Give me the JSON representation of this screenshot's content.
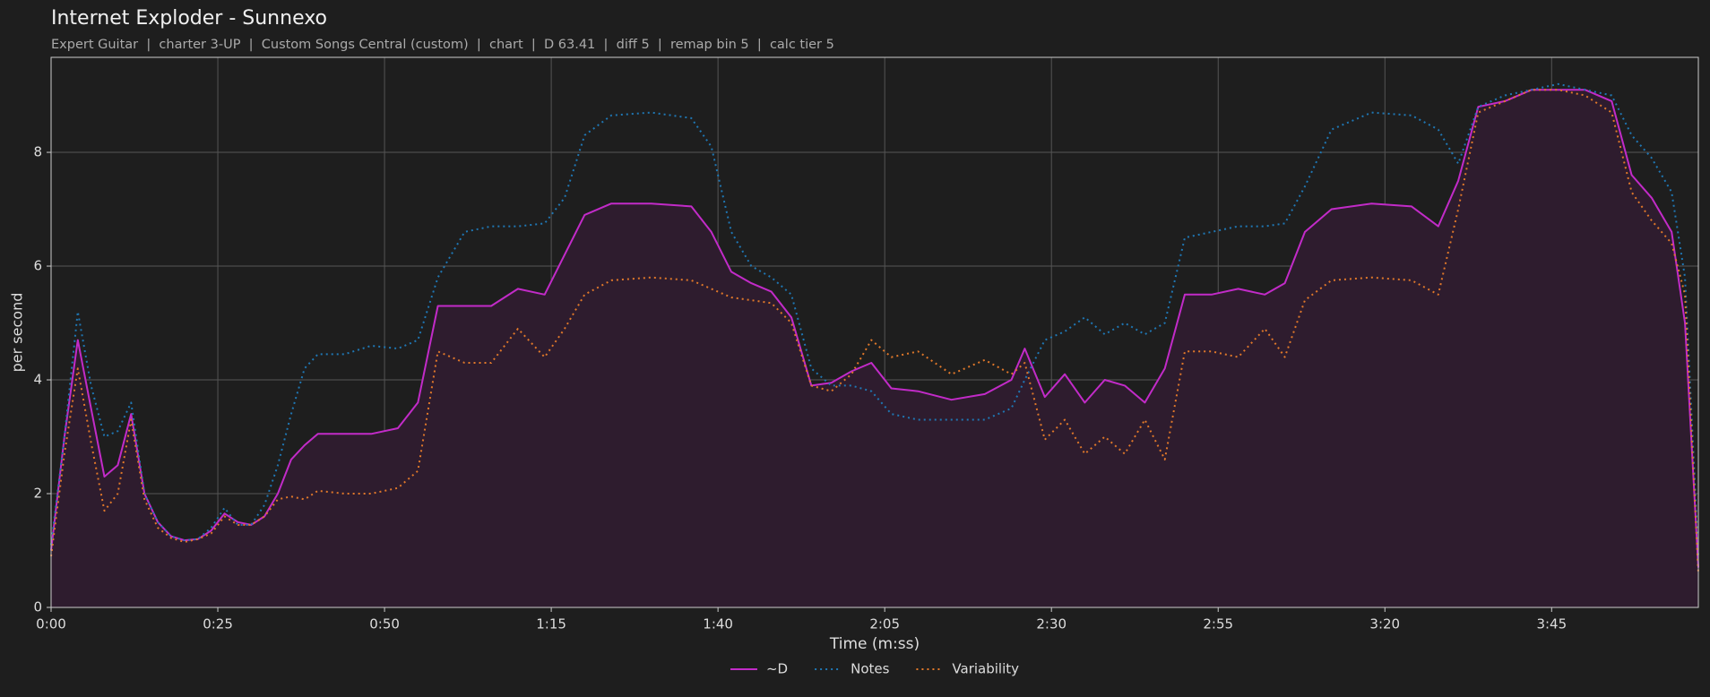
{
  "chart_data": {
    "type": "line",
    "title": "Internet Exploder - Sunnexo",
    "subtitle": "Expert Guitar  |  charter 3-UP  |  Custom Songs Central (custom)  |  chart  |  D 63.41  |  diff 5  |  remap bin 5  |  calc tier 5",
    "xlabel": "Time (m:ss)",
    "ylabel": "per second",
    "x": [
      0,
      2,
      4,
      6,
      8,
      10,
      12,
      14,
      16,
      18,
      20,
      22,
      24,
      26,
      28,
      30,
      32,
      34,
      36,
      38,
      40,
      44,
      48,
      52,
      55,
      58,
      62,
      66,
      70,
      74,
      77,
      80,
      84,
      90,
      96,
      99,
      102,
      105,
      108,
      111,
      114,
      117,
      120,
      123,
      126,
      130,
      135,
      140,
      144,
      146,
      149,
      152,
      155,
      158,
      161,
      164,
      167,
      170,
      174,
      178,
      182,
      185,
      188,
      192,
      198,
      204,
      208,
      211,
      214,
      218,
      222,
      226,
      230,
      234,
      237,
      240,
      243,
      245,
      247
    ],
    "series": [
      {
        "name": "~D",
        "color": "#c22bc8",
        "linestyle": "solid",
        "fill": "#2e1c2e",
        "values": [
          1.0,
          3.0,
          4.7,
          3.5,
          2.3,
          2.5,
          3.4,
          2.0,
          1.5,
          1.25,
          1.18,
          1.2,
          1.35,
          1.65,
          1.5,
          1.45,
          1.6,
          2.0,
          2.6,
          2.85,
          3.05,
          3.05,
          3.05,
          3.15,
          3.6,
          5.3,
          5.3,
          5.3,
          5.6,
          5.5,
          6.2,
          6.9,
          7.1,
          7.1,
          7.05,
          6.6,
          5.9,
          5.7,
          5.55,
          5.1,
          3.9,
          3.95,
          4.15,
          4.3,
          3.85,
          3.8,
          3.65,
          3.75,
          4.0,
          4.55,
          3.7,
          4.1,
          3.6,
          4.0,
          3.9,
          3.6,
          4.2,
          5.5,
          5.5,
          5.6,
          5.5,
          5.7,
          6.6,
          7.0,
          7.1,
          7.05,
          6.7,
          7.5,
          8.8,
          8.9,
          9.1,
          9.1,
          9.1,
          8.9,
          7.6,
          7.2,
          6.6,
          5.0,
          0.7
        ]
      },
      {
        "name": "Notes",
        "color": "#1f77b4",
        "linestyle": "dotted",
        "values": [
          1.1,
          3.0,
          5.2,
          3.9,
          3.0,
          3.1,
          3.6,
          2.0,
          1.5,
          1.25,
          1.18,
          1.2,
          1.4,
          1.75,
          1.45,
          1.45,
          1.8,
          2.5,
          3.4,
          4.2,
          4.45,
          4.45,
          4.6,
          4.55,
          4.7,
          5.8,
          6.6,
          6.7,
          6.7,
          6.75,
          7.2,
          8.3,
          8.65,
          8.7,
          8.6,
          8.1,
          6.6,
          6.0,
          5.8,
          5.5,
          4.2,
          3.9,
          3.9,
          3.8,
          3.4,
          3.3,
          3.3,
          3.3,
          3.5,
          4.0,
          4.7,
          4.85,
          5.1,
          4.8,
          5.0,
          4.8,
          5.0,
          6.5,
          6.6,
          6.7,
          6.7,
          6.75,
          7.4,
          8.4,
          8.7,
          8.65,
          8.4,
          7.8,
          8.8,
          9.0,
          9.1,
          9.2,
          9.1,
          9.0,
          8.3,
          7.9,
          7.3,
          5.8,
          0.9
        ]
      },
      {
        "name": "Variability",
        "color": "#e0782a",
        "linestyle": "dotted",
        "values": [
          0.9,
          2.7,
          4.2,
          2.9,
          1.7,
          2.0,
          3.3,
          1.9,
          1.4,
          1.22,
          1.15,
          1.2,
          1.3,
          1.6,
          1.45,
          1.45,
          1.6,
          1.9,
          1.95,
          1.9,
          2.05,
          2.0,
          2.0,
          2.1,
          2.4,
          4.5,
          4.3,
          4.3,
          4.9,
          4.4,
          4.9,
          5.5,
          5.75,
          5.8,
          5.75,
          5.6,
          5.45,
          5.4,
          5.35,
          5.0,
          3.9,
          3.8,
          4.1,
          4.7,
          4.4,
          4.5,
          4.1,
          4.35,
          4.1,
          4.3,
          2.95,
          3.3,
          2.7,
          3.0,
          2.7,
          3.3,
          2.6,
          4.5,
          4.5,
          4.4,
          4.9,
          4.4,
          5.4,
          5.75,
          5.8,
          5.75,
          5.5,
          7.0,
          8.7,
          8.9,
          9.1,
          9.1,
          9.0,
          8.7,
          7.3,
          6.8,
          6.4,
          5.5,
          0.6
        ]
      }
    ],
    "xlim": [
      0,
      247
    ],
    "ylim": [
      0,
      9.67
    ],
    "xticks": [
      {
        "value": 0,
        "label": "0:00"
      },
      {
        "value": 25,
        "label": "0:25"
      },
      {
        "value": 50,
        "label": "0:50"
      },
      {
        "value": 75,
        "label": "1:15"
      },
      {
        "value": 100,
        "label": "1:40"
      },
      {
        "value": 125,
        "label": "2:05"
      },
      {
        "value": 150,
        "label": "2:30"
      },
      {
        "value": 175,
        "label": "2:55"
      },
      {
        "value": 200,
        "label": "3:20"
      },
      {
        "value": 225,
        "label": "3:45"
      }
    ],
    "yticks": [
      0,
      2,
      4,
      6,
      8
    ],
    "grid": true,
    "legend": "bottom"
  }
}
